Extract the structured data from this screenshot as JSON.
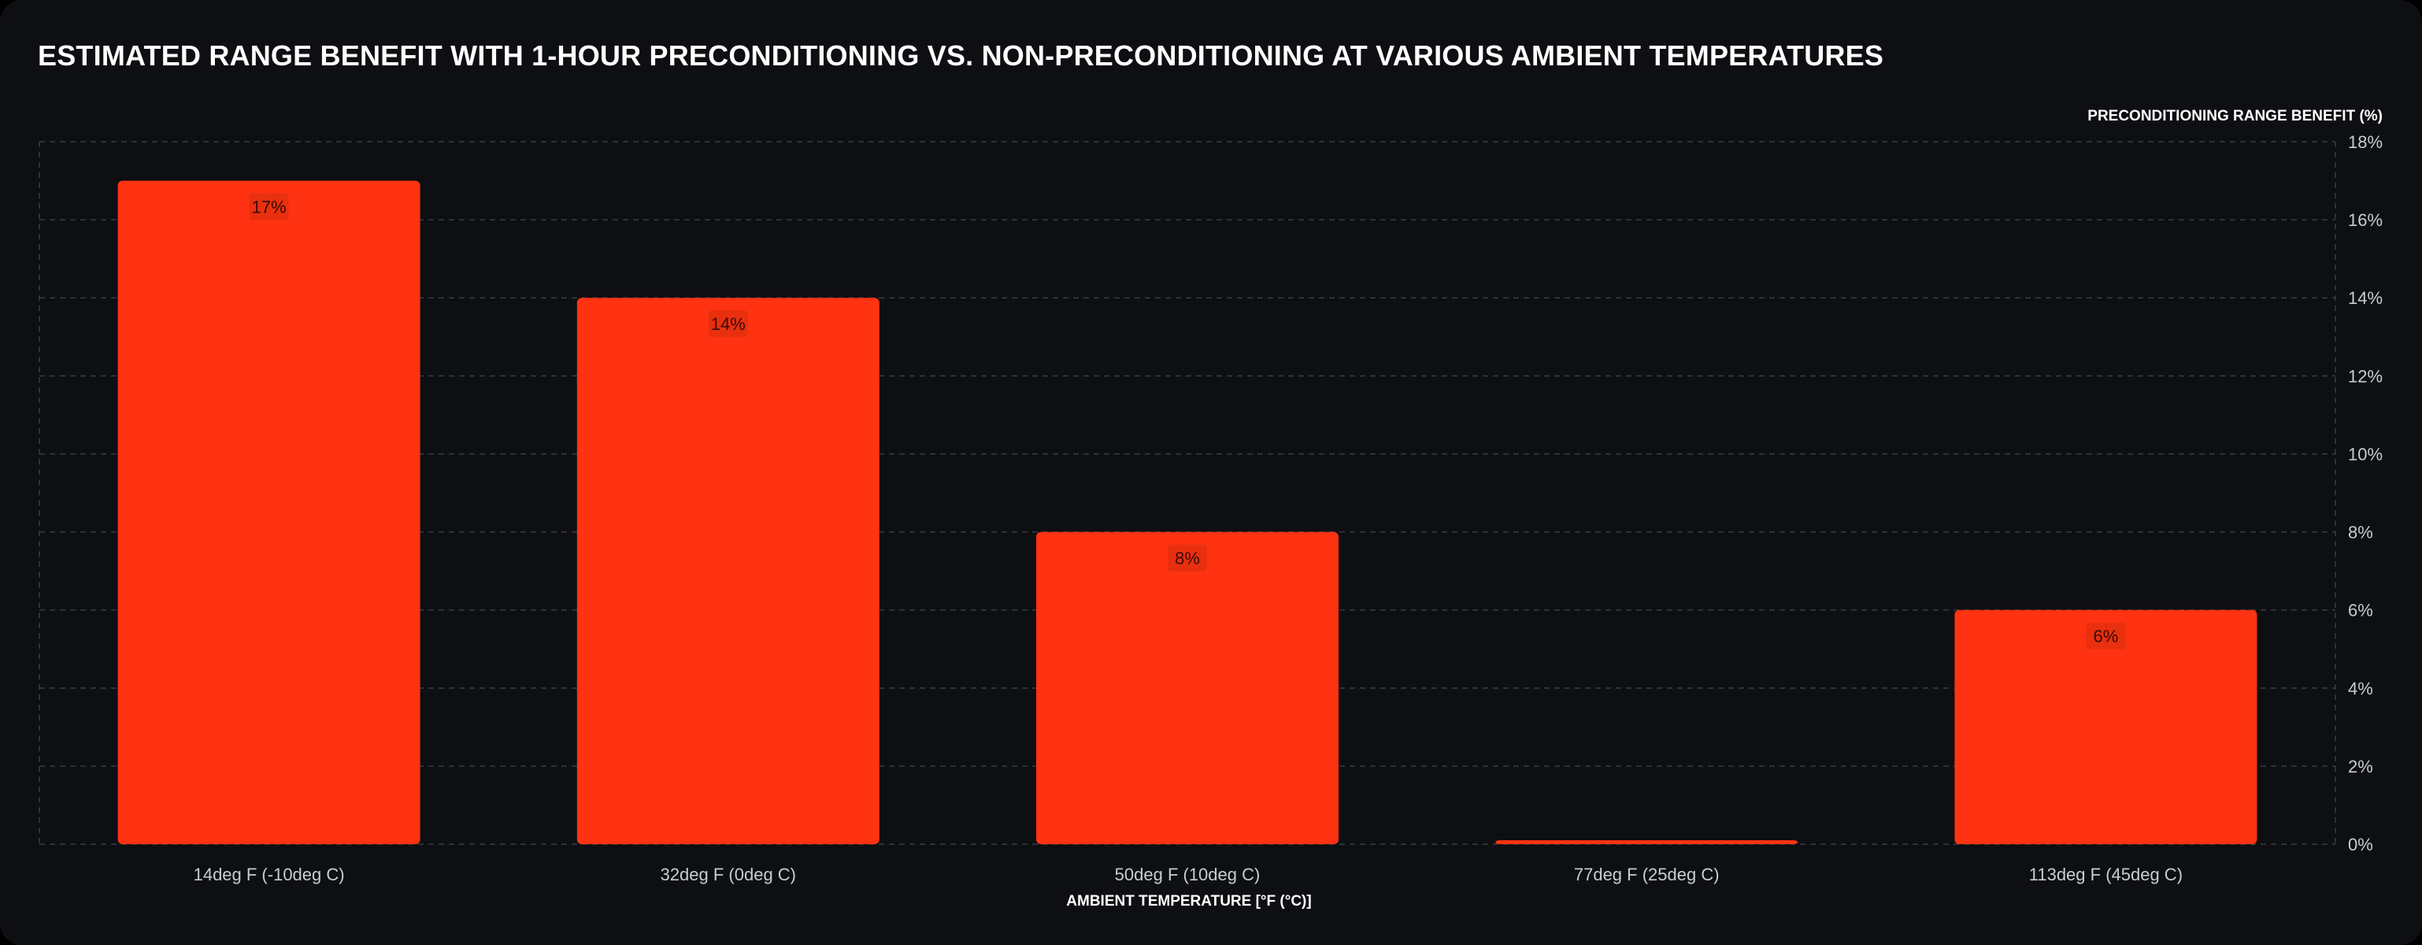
{
  "title": "ESTIMATED RANGE BENEFIT WITH 1-HOUR PRECONDITIONING VS. NON-PRECONDITIONING AT VARIOUS AMBIENT TEMPERATURES",
  "colors": {
    "bar": "#ff3312",
    "background": "#0d0f12",
    "grid": "#3a3d44",
    "label_box": "#e8300f"
  },
  "chart_data": {
    "type": "bar",
    "title": "ESTIMATED RANGE BENEFIT WITH 1-HOUR PRECONDITIONING VS. NON-PRECONDITIONING AT VARIOUS AMBIENT TEMPERATURES",
    "xlabel": "AMBIENT TEMPERATURE [°F (°C)]",
    "ylabel": "PRECONDITIONING RANGE BENEFIT (%)",
    "categories": [
      "14deg F (-10deg C)",
      "32deg F (0deg C)",
      "50deg F (10deg C)",
      "77deg F (25deg C)",
      "113deg F (45deg C)"
    ],
    "values": [
      17,
      14,
      8,
      0,
      6
    ],
    "data_labels": [
      "17%",
      "14%",
      "8%",
      "",
      "6%"
    ],
    "ylim": [
      0,
      18
    ],
    "y_ticks": [
      0,
      2,
      4,
      6,
      8,
      10,
      12,
      14,
      16,
      18
    ],
    "y_tick_labels": [
      "0%",
      "2%",
      "4%",
      "6%",
      "8%",
      "10%",
      "12%",
      "14%",
      "16%",
      "18%"
    ],
    "y_axis_side": "right",
    "grid": true
  }
}
